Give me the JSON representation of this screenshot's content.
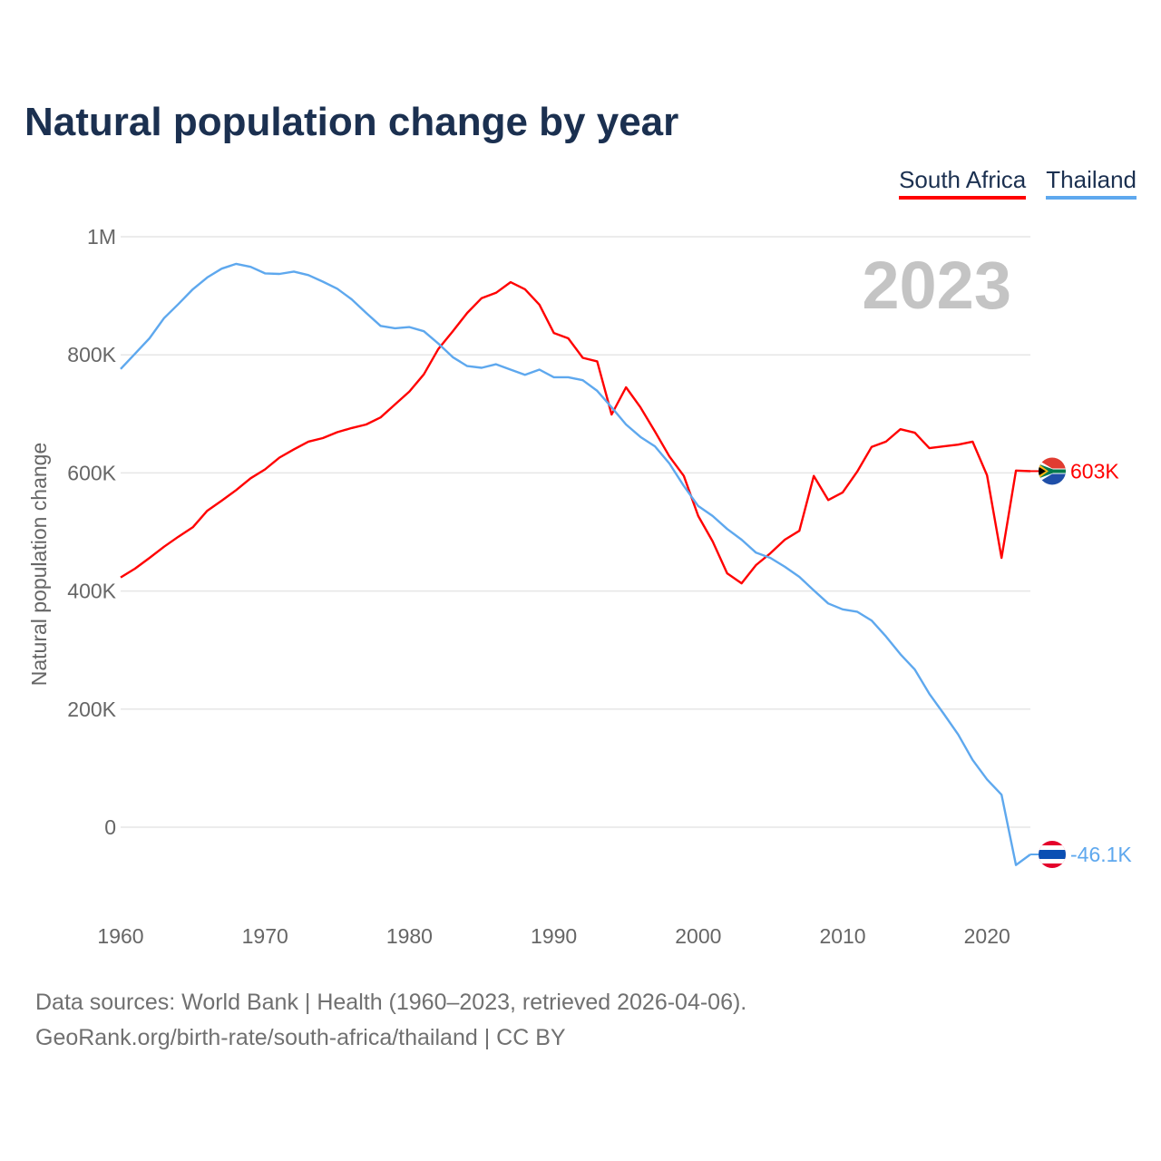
{
  "chart_data": {
    "type": "line",
    "title": "Natural population change by year",
    "xlabel": "",
    "ylabel": "Natural population change",
    "ylim": [
      -100000,
      1000000
    ],
    "xlim": [
      1960,
      2023
    ],
    "yticks": [
      0,
      200000,
      400000,
      600000,
      800000,
      1000000
    ],
    "ytick_labels": [
      "0",
      "200K",
      "400K",
      "600K",
      "800K",
      "1M"
    ],
    "xticks": [
      1960,
      1970,
      1980,
      1990,
      2000,
      2010,
      2020
    ],
    "xtick_labels": [
      "1960",
      "1970",
      "1980",
      "1990",
      "2000",
      "2010",
      "2020"
    ],
    "grid": true,
    "legend_position": "top-right",
    "year_label": "2023",
    "x": [
      1960,
      1961,
      1962,
      1963,
      1964,
      1965,
      1966,
      1967,
      1968,
      1969,
      1970,
      1971,
      1972,
      1973,
      1974,
      1975,
      1976,
      1977,
      1978,
      1979,
      1980,
      1981,
      1982,
      1983,
      1984,
      1985,
      1986,
      1987,
      1988,
      1989,
      1990,
      1991,
      1992,
      1993,
      1994,
      1995,
      1996,
      1997,
      1998,
      1999,
      2000,
      2001,
      2002,
      2003,
      2004,
      2005,
      2006,
      2007,
      2008,
      2009,
      2010,
      2011,
      2012,
      2013,
      2014,
      2015,
      2016,
      2017,
      2018,
      2019,
      2020,
      2021,
      2022,
      2023
    ],
    "series": [
      {
        "name": "South Africa",
        "color": "#ff0000",
        "end_label": "603K",
        "flag": "south-africa",
        "values": [
          423000,
          438000,
          456000,
          475000,
          492000,
          508000,
          536000,
          553000,
          571000,
          591000,
          606000,
          626000,
          640000,
          653000,
          659000,
          669000,
          676000,
          682000,
          694000,
          716000,
          738000,
          767000,
          810000,
          840000,
          871000,
          896000,
          905000,
          923000,
          911000,
          885000,
          837000,
          828000,
          795000,
          789000,
          699000,
          745000,
          711000,
          670000,
          628000,
          595000,
          527000,
          484000,
          430000,
          413000,
          444000,
          464000,
          487000,
          502000,
          595000,
          554000,
          567000,
          602000,
          644000,
          653000,
          674000,
          668000,
          642000,
          645000,
          648000,
          653000,
          596000,
          456000,
          604000,
          603000
        ]
      },
      {
        "name": "Thailand",
        "color": "#5ea8ee",
        "end_label": "-46.1K",
        "flag": "thailand",
        "values": [
          776000,
          802000,
          828000,
          862000,
          886000,
          911000,
          931000,
          946000,
          954000,
          949000,
          938000,
          937000,
          941000,
          935000,
          924000,
          912000,
          894000,
          871000,
          849000,
          845000,
          847000,
          840000,
          819000,
          796000,
          781000,
          778000,
          784000,
          775000,
          766000,
          775000,
          762000,
          762000,
          757000,
          739000,
          711000,
          682000,
          661000,
          645000,
          616000,
          578000,
          544000,
          527000,
          505000,
          487000,
          465000,
          456000,
          441000,
          424000,
          401000,
          379000,
          369000,
          365000,
          350000,
          323000,
          293000,
          267000,
          226000,
          192000,
          157000,
          114000,
          81000,
          55000,
          -64000,
          -46100
        ]
      }
    ]
  },
  "footer": {
    "line1": "Data sources: World Bank | Health (1960–2023, retrieved 2026-04-06).",
    "line2": "GeoRank.org/birth-rate/south-africa/thailand | CC BY"
  }
}
